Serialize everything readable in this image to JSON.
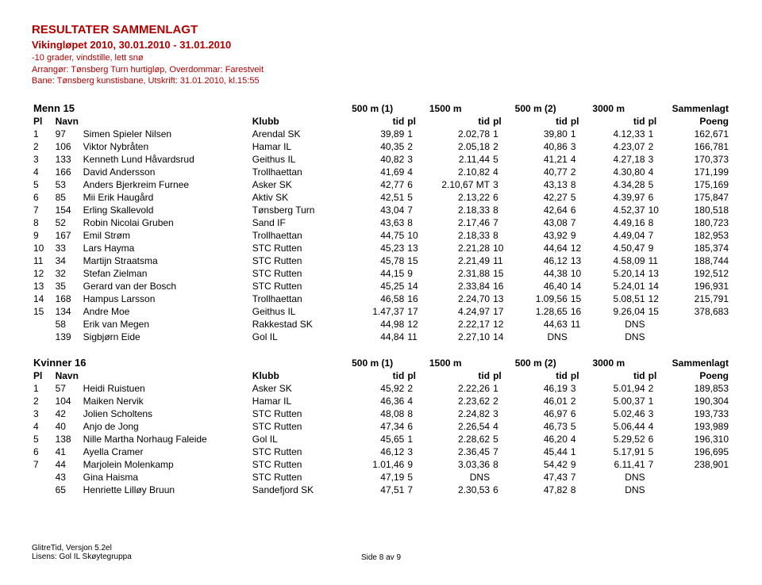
{
  "header": {
    "title": "RESULTATER SAMMENLAGT",
    "event": "Vikingløpet 2010, 30.01.2010 - 31.01.2010",
    "line3": "-10 grader, vindstille, lett snø",
    "line4": "Arrangør: Tønsberg Turn hurtigløp, Overdommar: Farestveit",
    "line5": "Bane: Tønsberg kunstisbane, Utskrift: 31.01.2010, kl.15:55"
  },
  "colHeaders": {
    "pl": "Pl",
    "navn": "Navn",
    "klubb": "Klubb",
    "d1": "500 m (1)",
    "d2": "1500 m",
    "d3": "500 m (2)",
    "d4": "3000 m",
    "sammenlagt": "Sammenlagt",
    "tid": "tid",
    "plh": "pl",
    "poeng": "Poeng"
  },
  "groups": [
    {
      "title": "Menn 15",
      "rows": [
        {
          "pl": "1",
          "nr": "97",
          "navn": "Simen Spieler Nilsen",
          "klubb": "Arendal SK",
          "t1": "39,89",
          "p1": "1",
          "t2": "2.02,78",
          "p2": "1",
          "t3": "39,80",
          "p3": "1",
          "t4": "4.12,33",
          "p4": "1",
          "pts": "162,671"
        },
        {
          "pl": "2",
          "nr": "106",
          "navn": "Viktor Nybråten",
          "klubb": "Hamar IL",
          "t1": "40,35",
          "p1": "2",
          "t2": "2.05,18",
          "p2": "2",
          "t3": "40,86",
          "p3": "3",
          "t4": "4.23,07",
          "p4": "2",
          "pts": "166,781"
        },
        {
          "pl": "3",
          "nr": "133",
          "navn": "Kenneth Lund Håvardsrud",
          "klubb": "Geithus IL",
          "t1": "40,82",
          "p1": "3",
          "t2": "2.11,44",
          "p2": "5",
          "t3": "41,21",
          "p3": "4",
          "t4": "4.27,18",
          "p4": "3",
          "pts": "170,373"
        },
        {
          "pl": "4",
          "nr": "166",
          "navn": "David Andersson",
          "klubb": "Trollhaettan",
          "t1": "41,69",
          "p1": "4",
          "t2": "2.10,82",
          "p2": "4",
          "t3": "40,77",
          "p3": "2",
          "t4": "4.30,80",
          "p4": "4",
          "pts": "171,199"
        },
        {
          "pl": "5",
          "nr": "53",
          "navn": "Anders Bjerkreim Furnee",
          "klubb": "Asker SK",
          "t1": "42,77",
          "p1": "6",
          "t2": "2.10,67 MT",
          "p2": "3",
          "t3": "43,13",
          "p3": "8",
          "t4": "4.34,28",
          "p4": "5",
          "pts": "175,169"
        },
        {
          "pl": "6",
          "nr": "85",
          "navn": "Mii Erik Haugård",
          "klubb": "Aktiv SK",
          "t1": "42,51",
          "p1": "5",
          "t2": "2.13,22",
          "p2": "6",
          "t3": "42,27",
          "p3": "5",
          "t4": "4.39,97",
          "p4": "6",
          "pts": "175,847"
        },
        {
          "pl": "7",
          "nr": "154",
          "navn": "Erling Skallevold",
          "klubb": "Tønsberg Turn",
          "t1": "43,04",
          "p1": "7",
          "t2": "2.18,33",
          "p2": "8",
          "t3": "42,64",
          "p3": "6",
          "t4": "4.52,37",
          "p4": "10",
          "pts": "180,518"
        },
        {
          "pl": "8",
          "nr": "52",
          "navn": "Robin Nicolai Gruben",
          "klubb": "Sand IF",
          "t1": "43,63",
          "p1": "8",
          "t2": "2.17,46",
          "p2": "7",
          "t3": "43,08",
          "p3": "7",
          "t4": "4.49,16",
          "p4": "8",
          "pts": "180,723"
        },
        {
          "pl": "9",
          "nr": "167",
          "navn": "Emil Strøm",
          "klubb": "Trollhaettan",
          "t1": "44,75",
          "p1": "10",
          "t2": "2.18,33",
          "p2": "8",
          "t3": "43,92",
          "p3": "9",
          "t4": "4.49,04",
          "p4": "7",
          "pts": "182,953"
        },
        {
          "pl": "10",
          "nr": "33",
          "navn": "Lars Hayma",
          "klubb": "STC Rutten",
          "t1": "45,23",
          "p1": "13",
          "t2": "2.21,28",
          "p2": "10",
          "t3": "44,64",
          "p3": "12",
          "t4": "4.50,47",
          "p4": "9",
          "pts": "185,374"
        },
        {
          "pl": "11",
          "nr": "34",
          "navn": "Martijn Straatsma",
          "klubb": "STC Rutten",
          "t1": "45,78",
          "p1": "15",
          "t2": "2.21,49",
          "p2": "11",
          "t3": "46,12",
          "p3": "13",
          "t4": "4.58,09",
          "p4": "11",
          "pts": "188,744"
        },
        {
          "pl": "12",
          "nr": "32",
          "navn": "Stefan Zielman",
          "klubb": "STC Rutten",
          "t1": "44,15",
          "p1": "9",
          "t2": "2.31,88",
          "p2": "15",
          "t3": "44,38",
          "p3": "10",
          "t4": "5.20,14",
          "p4": "13",
          "pts": "192,512"
        },
        {
          "pl": "13",
          "nr": "35",
          "navn": "Gerard van der Bosch",
          "klubb": "STC Rutten",
          "t1": "45,25",
          "p1": "14",
          "t2": "2.33,84",
          "p2": "16",
          "t3": "46,40",
          "p3": "14",
          "t4": "5.24,01",
          "p4": "14",
          "pts": "196,931"
        },
        {
          "pl": "14",
          "nr": "168",
          "navn": "Hampus Larsson",
          "klubb": "Trollhaettan",
          "t1": "46,58",
          "p1": "16",
          "t2": "2.24,70",
          "p2": "13",
          "t3": "1.09,56",
          "p3": "15",
          "t4": "5.08,51",
          "p4": "12",
          "pts": "215,791"
        },
        {
          "pl": "15",
          "nr": "134",
          "navn": "Andre Moe",
          "klubb": "Geithus IL",
          "t1": "1.47,37",
          "p1": "17",
          "t2": "4.24,97",
          "p2": "17",
          "t3": "1.28,65",
          "p3": "16",
          "t4": "9.26,04",
          "p4": "15",
          "pts": "378,683"
        },
        {
          "pl": "",
          "nr": "58",
          "navn": "Erik van Megen",
          "klubb": "Rakkestad SK",
          "t1": "44,98",
          "p1": "12",
          "t2": "2.22,17",
          "p2": "12",
          "t3": "44,63",
          "p3": "11",
          "t4": "DNS",
          "p4": "",
          "pts": ""
        },
        {
          "pl": "",
          "nr": "139",
          "navn": "Sigbjørn Eide",
          "klubb": "Gol IL",
          "t1": "44,84",
          "p1": "11",
          "t2": "2.27,10",
          "p2": "14",
          "t3": "DNS",
          "p3": "",
          "t4": "DNS",
          "p4": "",
          "pts": ""
        }
      ]
    },
    {
      "title": "Kvinner 16",
      "rows": [
        {
          "pl": "1",
          "nr": "57",
          "navn": "Heidi Ruistuen",
          "klubb": "Asker SK",
          "t1": "45,92",
          "p1": "2",
          "t2": "2.22,26",
          "p2": "1",
          "t3": "46,19",
          "p3": "3",
          "t4": "5.01,94",
          "p4": "2",
          "pts": "189,853"
        },
        {
          "pl": "2",
          "nr": "104",
          "navn": "Maiken Nervik",
          "klubb": "Hamar IL",
          "t1": "46,36",
          "p1": "4",
          "t2": "2.23,62",
          "p2": "2",
          "t3": "46,01",
          "p3": "2",
          "t4": "5.00,37",
          "p4": "1",
          "pts": "190,304"
        },
        {
          "pl": "3",
          "nr": "42",
          "navn": "Jolien Scholtens",
          "klubb": "STC Rutten",
          "t1": "48,08",
          "p1": "8",
          "t2": "2.24,82",
          "p2": "3",
          "t3": "46,97",
          "p3": "6",
          "t4": "5.02,46",
          "p4": "3",
          "pts": "193,733"
        },
        {
          "pl": "4",
          "nr": "40",
          "navn": "Anjo de Jong",
          "klubb": "STC Rutten",
          "t1": "47,34",
          "p1": "6",
          "t2": "2.26,54",
          "p2": "4",
          "t3": "46,73",
          "p3": "5",
          "t4": "5.06,44",
          "p4": "4",
          "pts": "193,989"
        },
        {
          "pl": "5",
          "nr": "138",
          "navn": "Nille Martha Norhaug Faleide",
          "klubb": "Gol IL",
          "t1": "45,65",
          "p1": "1",
          "t2": "2.28,62",
          "p2": "5",
          "t3": "46,20",
          "p3": "4",
          "t4": "5.29,52",
          "p4": "6",
          "pts": "196,310"
        },
        {
          "pl": "6",
          "nr": "41",
          "navn": "Ayella Cramer",
          "klubb": "STC Rutten",
          "t1": "46,12",
          "p1": "3",
          "t2": "2.36,45",
          "p2": "7",
          "t3": "45,44",
          "p3": "1",
          "t4": "5.17,91",
          "p4": "5",
          "pts": "196,695"
        },
        {
          "pl": "7",
          "nr": "44",
          "navn": "Marjolein Molenkamp",
          "klubb": "STC Rutten",
          "t1": "1.01,46",
          "p1": "9",
          "t2": "3.03,36",
          "p2": "8",
          "t3": "54,42",
          "p3": "9",
          "t4": "6.11,41",
          "p4": "7",
          "pts": "238,901"
        },
        {
          "pl": "",
          "nr": "43",
          "navn": "Gina Haisma",
          "klubb": "STC Rutten",
          "t1": "47,19",
          "p1": "5",
          "t2": "DNS",
          "p2": "",
          "t3": "47,43",
          "p3": "7",
          "t4": "DNS",
          "p4": "",
          "pts": ""
        },
        {
          "pl": "",
          "nr": "65",
          "navn": "Henriette Lilløy Bruun",
          "klubb": "Sandefjord SK",
          "t1": "47,51",
          "p1": "7",
          "t2": "2.30,53",
          "p2": "6",
          "t3": "47,82",
          "p3": "8",
          "t4": "DNS",
          "p4": "",
          "pts": ""
        }
      ]
    }
  ],
  "footer": {
    "left1": "GlitreTid,  Versjon 5.2el",
    "left2": "Lisens: Gol IL Skøytegruppa",
    "center": "Side 8 av 9"
  },
  "layout": {
    "colWidths": [
      "22px",
      "28px",
      "170px",
      "100px",
      "56px",
      "22px",
      "64px",
      "22px",
      "56px",
      "22px",
      "56px",
      "22px",
      "62px"
    ]
  }
}
